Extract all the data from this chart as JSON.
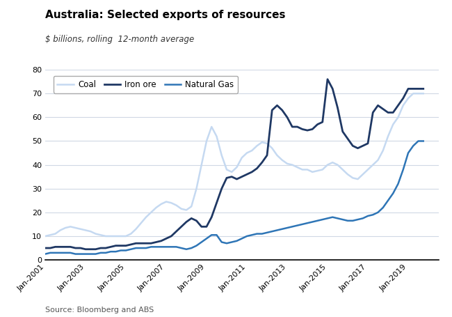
{
  "title": "Australia: Selected exports of resources",
  "subtitle": "$ billions, rolling  12-month average",
  "source": "Source: Bloomberg and ABS",
  "ylim": [
    0,
    80
  ],
  "yticks": [
    0,
    10,
    20,
    30,
    40,
    50,
    60,
    70,
    80
  ],
  "xlim": [
    2001,
    2020.5
  ],
  "colors": {
    "coal": "#c5d9f1",
    "iron_ore": "#1f3864",
    "natural_gas": "#2e75b6"
  },
  "legend_labels": [
    "Coal",
    "Iron ore",
    "Natural Gas"
  ],
  "coal_years": [
    2001.0,
    2001.25,
    2001.5,
    2001.75,
    2002.0,
    2002.25,
    2002.5,
    2002.75,
    2003.0,
    2003.25,
    2003.5,
    2003.75,
    2004.0,
    2004.25,
    2004.5,
    2004.75,
    2005.0,
    2005.25,
    2005.5,
    2005.75,
    2006.0,
    2006.25,
    2006.5,
    2006.75,
    2007.0,
    2007.25,
    2007.5,
    2007.75,
    2008.0,
    2008.25,
    2008.5,
    2008.75,
    2009.0,
    2009.25,
    2009.5,
    2009.75,
    2010.0,
    2010.25,
    2010.5,
    2010.75,
    2011.0,
    2011.25,
    2011.5,
    2011.75,
    2012.0,
    2012.25,
    2012.5,
    2012.75,
    2013.0,
    2013.25,
    2013.5,
    2013.75,
    2014.0,
    2014.25,
    2014.5,
    2014.75,
    2015.0,
    2015.25,
    2015.5,
    2015.75,
    2016.0,
    2016.25,
    2016.5,
    2016.75,
    2017.0,
    2017.25,
    2017.5,
    2017.75,
    2018.0,
    2018.25,
    2018.5,
    2018.75,
    2019.0,
    2019.25,
    2019.5,
    2019.75
  ],
  "coal_values": [
    10.0,
    10.5,
    11.0,
    12.5,
    13.5,
    14.0,
    13.5,
    13.0,
    12.5,
    12.0,
    11.0,
    10.5,
    10.0,
    10.0,
    10.0,
    10.0,
    10.0,
    11.0,
    13.0,
    15.5,
    18.0,
    20.0,
    22.0,
    23.5,
    24.5,
    24.0,
    23.0,
    21.5,
    21.0,
    22.5,
    30.0,
    40.0,
    50.0,
    56.0,
    52.0,
    44.0,
    38.0,
    37.0,
    39.0,
    43.0,
    45.0,
    46.0,
    48.0,
    49.5,
    49.0,
    47.0,
    44.0,
    42.0,
    40.5,
    40.0,
    39.0,
    38.0,
    38.0,
    37.0,
    37.5,
    38.0,
    40.0,
    41.0,
    40.0,
    38.0,
    36.0,
    34.5,
    34.0,
    36.0,
    38.0,
    40.0,
    42.0,
    46.0,
    52.0,
    57.0,
    60.0,
    65.0,
    68.0,
    70.0,
    70.0,
    70.0
  ],
  "iron_ore_years": [
    2001.0,
    2001.25,
    2001.5,
    2001.75,
    2002.0,
    2002.25,
    2002.5,
    2002.75,
    2003.0,
    2003.25,
    2003.5,
    2003.75,
    2004.0,
    2004.25,
    2004.5,
    2004.75,
    2005.0,
    2005.25,
    2005.5,
    2005.75,
    2006.0,
    2006.25,
    2006.5,
    2006.75,
    2007.0,
    2007.25,
    2007.5,
    2007.75,
    2008.0,
    2008.25,
    2008.5,
    2008.75,
    2009.0,
    2009.25,
    2009.5,
    2009.75,
    2010.0,
    2010.25,
    2010.5,
    2010.75,
    2011.0,
    2011.25,
    2011.5,
    2011.75,
    2012.0,
    2012.25,
    2012.5,
    2012.75,
    2013.0,
    2013.25,
    2013.5,
    2013.75,
    2014.0,
    2014.25,
    2014.5,
    2014.75,
    2015.0,
    2015.25,
    2015.5,
    2015.75,
    2016.0,
    2016.25,
    2016.5,
    2016.75,
    2017.0,
    2017.25,
    2017.5,
    2017.75,
    2018.0,
    2018.25,
    2018.5,
    2018.75,
    2019.0,
    2019.25,
    2019.5,
    2019.75
  ],
  "iron_ore_values": [
    5.0,
    5.0,
    5.5,
    5.5,
    5.5,
    5.5,
    5.0,
    5.0,
    4.5,
    4.5,
    4.5,
    5.0,
    5.0,
    5.5,
    6.0,
    6.0,
    6.0,
    6.5,
    7.0,
    7.0,
    7.0,
    7.0,
    7.5,
    8.0,
    9.0,
    10.0,
    12.0,
    14.0,
    16.0,
    17.5,
    16.5,
    14.0,
    14.0,
    18.0,
    24.0,
    30.0,
    34.5,
    35.0,
    34.0,
    35.0,
    36.0,
    37.0,
    38.5,
    41.0,
    44.0,
    63.0,
    65.0,
    63.0,
    60.0,
    56.0,
    56.0,
    55.0,
    54.5,
    55.0,
    57.0,
    58.0,
    76.0,
    72.0,
    64.0,
    54.0,
    51.0,
    48.0,
    47.0,
    48.0,
    49.0,
    62.0,
    65.0,
    63.5,
    62.0,
    62.0,
    65.0,
    68.0,
    72.0,
    72.0,
    72.0,
    72.0
  ],
  "natural_gas_years": [
    2001.0,
    2001.25,
    2001.5,
    2001.75,
    2002.0,
    2002.25,
    2002.5,
    2002.75,
    2003.0,
    2003.25,
    2003.5,
    2003.75,
    2004.0,
    2004.25,
    2004.5,
    2004.75,
    2005.0,
    2005.25,
    2005.5,
    2005.75,
    2006.0,
    2006.25,
    2006.5,
    2006.75,
    2007.0,
    2007.25,
    2007.5,
    2007.75,
    2008.0,
    2008.25,
    2008.5,
    2008.75,
    2009.0,
    2009.25,
    2009.5,
    2009.75,
    2010.0,
    2010.25,
    2010.5,
    2010.75,
    2011.0,
    2011.25,
    2011.5,
    2011.75,
    2012.0,
    2012.25,
    2012.5,
    2012.75,
    2013.0,
    2013.25,
    2013.5,
    2013.75,
    2014.0,
    2014.25,
    2014.5,
    2014.75,
    2015.0,
    2015.25,
    2015.5,
    2015.75,
    2016.0,
    2016.25,
    2016.5,
    2016.75,
    2017.0,
    2017.25,
    2017.5,
    2017.75,
    2018.0,
    2018.25,
    2018.5,
    2018.75,
    2019.0,
    2019.25,
    2019.5,
    2019.75
  ],
  "natural_gas_values": [
    2.5,
    3.0,
    3.0,
    3.0,
    3.0,
    3.0,
    2.5,
    2.5,
    2.5,
    2.5,
    2.5,
    3.0,
    3.0,
    3.5,
    3.5,
    4.0,
    4.0,
    4.5,
    5.0,
    5.0,
    5.0,
    5.5,
    5.5,
    5.5,
    5.5,
    5.5,
    5.5,
    5.0,
    4.5,
    5.0,
    6.0,
    7.5,
    9.0,
    10.5,
    10.5,
    7.5,
    7.0,
    7.5,
    8.0,
    9.0,
    10.0,
    10.5,
    11.0,
    11.0,
    11.5,
    12.0,
    12.5,
    13.0,
    13.5,
    14.0,
    14.5,
    15.0,
    15.5,
    16.0,
    16.5,
    17.0,
    17.5,
    18.0,
    17.5,
    17.0,
    16.5,
    16.5,
    17.0,
    17.5,
    18.5,
    19.0,
    20.0,
    22.0,
    25.0,
    28.0,
    32.0,
    38.0,
    45.0,
    48.0,
    50.0,
    50.0
  ],
  "xtick_labels": [
    "Jan-2001",
    "Jan-2003",
    "Jan-2005",
    "Jan-2007",
    "Jan-2009",
    "Jan-2011",
    "Jan-2013",
    "Jan-2015",
    "Jan-2017",
    "Jan-2019"
  ],
  "xtick_positions": [
    2001,
    2003,
    2005,
    2007,
    2009,
    2011,
    2013,
    2015,
    2017,
    2019
  ]
}
